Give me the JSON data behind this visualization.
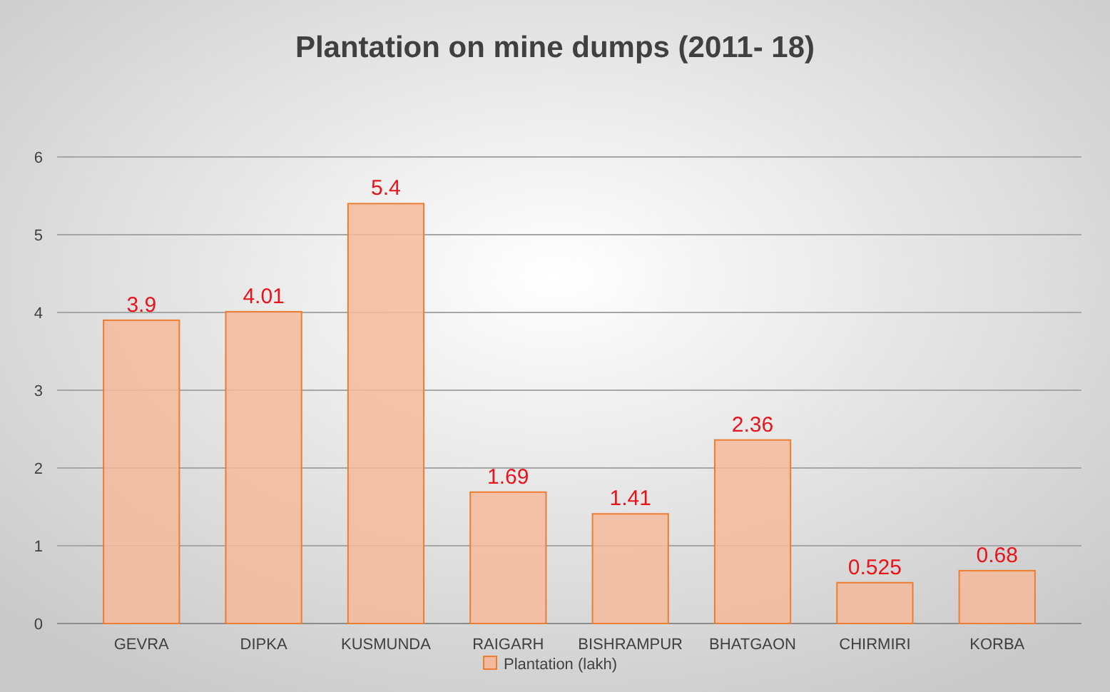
{
  "chart_data": {
    "type": "bar",
    "title": "Plantation on mine dumps (2011- 18)",
    "categories": [
      "GEVRA",
      "DIPKA",
      "KUSMUNDA",
      "RAIGARH",
      "BISHRAMPUR",
      "BHATGAON",
      "CHIRMIRI",
      "KORBA"
    ],
    "series": [
      {
        "name": "Plantation (lakh)",
        "color": "#f4b89c",
        "values": [
          3.9,
          4.01,
          5.4,
          1.69,
          1.41,
          2.36,
          0.525,
          0.68
        ]
      }
    ],
    "ylim": [
      0,
      6
    ],
    "yticks": [
      0,
      1,
      2,
      3,
      4,
      5,
      6
    ],
    "grid": "y",
    "legend": "bottom",
    "data_labels": true
  }
}
